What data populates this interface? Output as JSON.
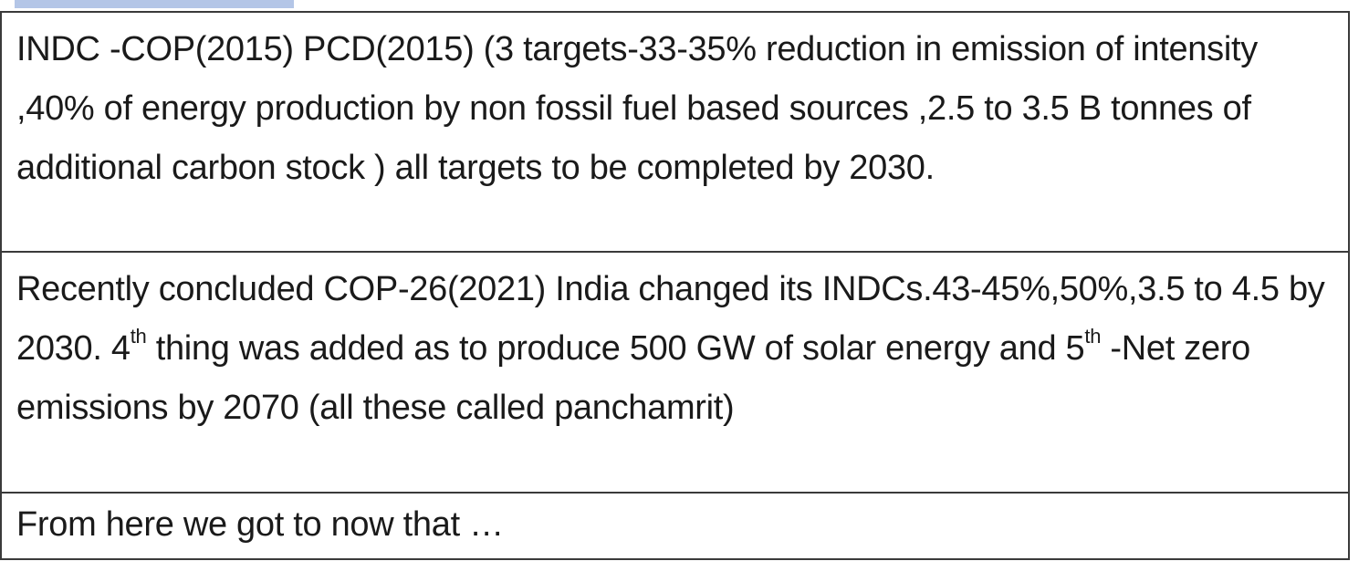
{
  "document": {
    "rows": [
      {
        "text": "INDC -COP(2015) PCD(2015) (3 targets-33-35% reduction in emission of intensity ,40% of energy production by non fossil fuel based sources ,2.5 to 3.5 B tonnes of additional carbon stock ) all targets to be completed by 2030."
      },
      {
        "part1": "Recently concluded COP-26(2021) India changed its INDCs.43-45%,50%,3.5 to 4.5 by 2030. 4",
        "sup1": "th",
        "part2": " thing was added as to produce 500 GW of solar energy and 5",
        "sup2": "th",
        "part3": " -Net zero emissions by 2070 (all these called panchamrit)"
      },
      {
        "text": "From here we got to now that …"
      }
    ]
  },
  "colors": {
    "highlight": "#b4c6e7",
    "border": "#3a3a3a",
    "text": "#1a1a1a"
  }
}
